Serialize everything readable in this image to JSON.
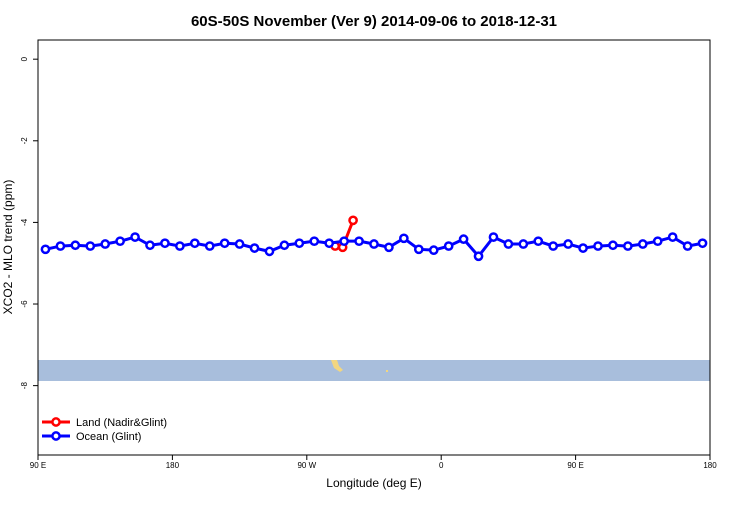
{
  "chart_data": {
    "type": "line",
    "title": "60S-50S November (Ver 9)   2014-09-06 to 2018-12-31",
    "x_label": "Longitude (deg E)",
    "y_label": "XCO2 - MLO trend (ppm)",
    "xlim": [
      90,
      540
    ],
    "xticks": [
      {
        "value": 90,
        "label": "90 E"
      },
      180,
      {
        "value": 270,
        "label": "90 W"
      },
      {
        "value": 360,
        "label": "0"
      },
      {
        "value": 450,
        "label": "90 E"
      },
      {
        "value": 540,
        "label": "180"
      }
    ],
    "ylim": [
      -9.7,
      0.47
    ],
    "yticks": [
      0,
      -2,
      -4,
      -6,
      -8
    ],
    "legend": "bottom-left",
    "series": [
      {
        "name": "Land (Nadir&Glint)",
        "color": "#ff0000",
        "x": [
          289,
          294,
          301
        ],
        "values": [
          -4.58,
          -4.61,
          -3.95
        ]
      },
      {
        "name": "Ocean (Glint)",
        "color": "#0000ff",
        "x": [
          95,
          105,
          115,
          125,
          135,
          145,
          155,
          165,
          175,
          185,
          195,
          205,
          215,
          225,
          235,
          245,
          255,
          265,
          275,
          285,
          295,
          305,
          315,
          325,
          335,
          345,
          355,
          365,
          375,
          385,
          395,
          405,
          415,
          425,
          435,
          445,
          455,
          465,
          475,
          485,
          495,
          505,
          515,
          525,
          535
        ],
        "values": [
          -4.66,
          -4.58,
          -4.56,
          -4.58,
          -4.53,
          -4.46,
          -4.36,
          -4.56,
          -4.51,
          -4.58,
          -4.51,
          -4.58,
          -4.51,
          -4.53,
          -4.63,
          -4.71,
          -4.56,
          -4.51,
          -4.46,
          -4.51,
          -4.46,
          -4.46,
          -4.53,
          -4.61,
          -4.39,
          -4.66,
          -4.68,
          -4.58,
          -4.41,
          -4.83,
          -4.36,
          -4.53,
          -4.53,
          -4.46,
          -4.58,
          -4.53,
          -4.63,
          -4.58,
          -4.56,
          -4.58,
          -4.53,
          -4.46,
          -4.36,
          -4.58,
          -4.51
        ]
      }
    ]
  }
}
